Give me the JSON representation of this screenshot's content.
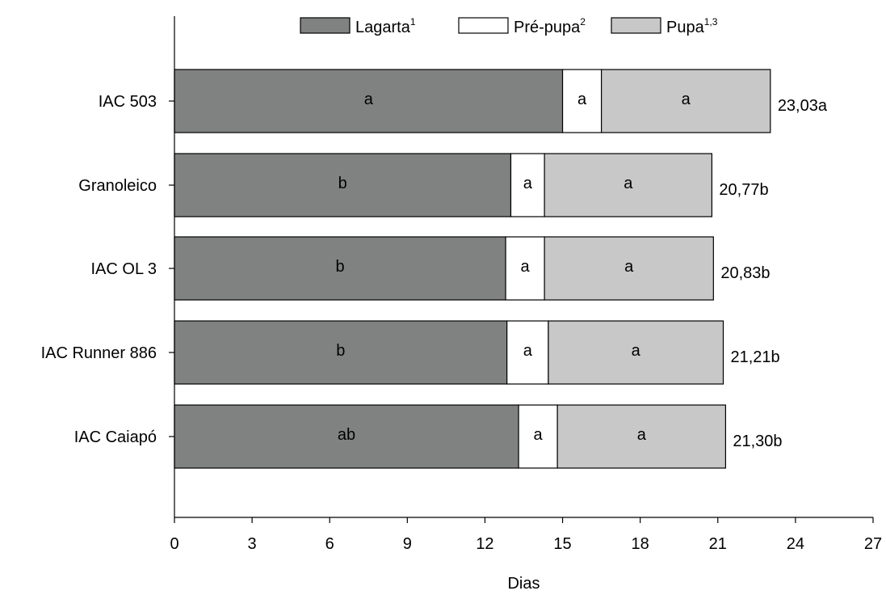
{
  "chart_data": {
    "type": "bar",
    "orientation": "horizontal",
    "stacked": true,
    "categories": [
      "IAC 503",
      "Granoleico",
      "IAC OL 3",
      "IAC Runner 886",
      "IAC Caiapó"
    ],
    "series": [
      {
        "name": "Lagarta",
        "superscript": "1",
        "color": "#808281",
        "values": [
          15.0,
          13.0,
          12.8,
          12.85,
          13.3
        ],
        "labels": [
          "a",
          "b",
          "b",
          "b",
          "ab"
        ]
      },
      {
        "name": "Pré-pupa",
        "superscript": "2",
        "color": "#ffffff",
        "values": [
          1.5,
          1.3,
          1.5,
          1.6,
          1.5
        ],
        "labels": [
          "a",
          "a",
          "a",
          "a",
          "a"
        ]
      },
      {
        "name": "Pupa",
        "superscript": "1,3",
        "color": "#c8c8c8",
        "values": [
          6.53,
          6.47,
          6.53,
          6.76,
          6.5
        ],
        "labels": [
          "a",
          "a",
          "a",
          "a",
          "a"
        ]
      }
    ],
    "totals": [
      23.03,
      20.77,
      20.83,
      21.21,
      21.3
    ],
    "total_labels": [
      "23,03a",
      "20,77b",
      "20,83b",
      "21,21b",
      "21,30b"
    ],
    "xlabel": "Dias",
    "ylabel": "",
    "xlim": [
      0,
      27
    ],
    "xticks": [
      "0",
      "3",
      "6",
      "9",
      "12",
      "15",
      "18",
      "21",
      "24",
      "27"
    ],
    "grid": false,
    "legend_position": "top"
  }
}
